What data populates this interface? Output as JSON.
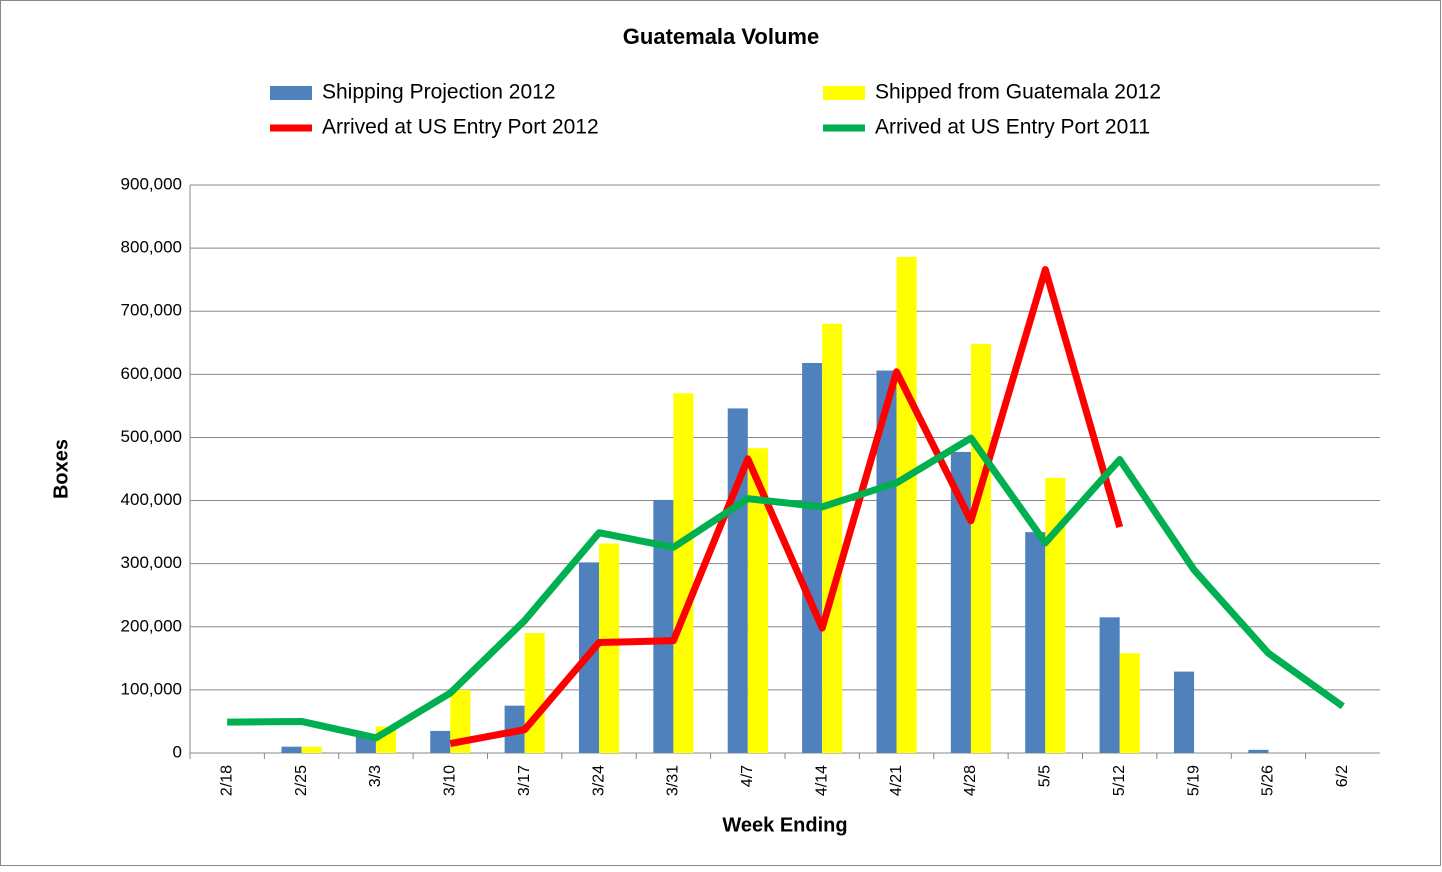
{
  "chart_data": {
    "type": "bar_line",
    "title": "Guatemala Volume",
    "x_label": "Week Ending",
    "y_label": "Boxes",
    "categories": [
      "2/18",
      "2/25",
      "3/3",
      "3/10",
      "3/17",
      "3/24",
      "3/31",
      "4/7",
      "4/14",
      "4/21",
      "4/28",
      "5/5",
      "5/12",
      "5/19",
      "5/26",
      "6/2"
    ],
    "series": [
      {
        "name": "Shipping Projection 2012",
        "type": "bar",
        "color": "#4f81bd",
        "values": [
          null,
          10000,
          30000,
          35000,
          75000,
          302000,
          401000,
          546000,
          618000,
          606000,
          477000,
          350000,
          215000,
          129000,
          5000,
          null
        ]
      },
      {
        "name": "Shipped from Guatemala 2012",
        "type": "bar",
        "color": "#ffff00",
        "values": [
          null,
          10000,
          42000,
          100000,
          190000,
          332000,
          570000,
          483000,
          680000,
          786000,
          648000,
          436000,
          158000,
          null,
          null,
          null
        ]
      },
      {
        "name": "Arrived at US Entry Port 2012",
        "type": "line",
        "color": "#ff0000",
        "values": [
          null,
          null,
          null,
          15000,
          37000,
          175000,
          178000,
          466000,
          198000,
          604000,
          368000,
          766000,
          358000,
          null,
          null,
          null
        ]
      },
      {
        "name": "Arrived at US Entry Port 2011",
        "type": "line",
        "color": "#00b050",
        "values": [
          49000,
          50000,
          24000,
          95000,
          210000,
          349000,
          326000,
          403000,
          390000,
          428000,
          499000,
          333000,
          465000,
          290000,
          158000,
          74000
        ]
      }
    ],
    "ylim": [
      0,
      900000
    ],
    "yticks": [
      0,
      {
        "value": 100000,
        "label": "100,000"
      },
      {
        "value": 200000,
        "label": "200,000"
      },
      {
        "value": 300000,
        "label": "300,000"
      },
      {
        "value": 400000,
        "label": "400,000"
      },
      {
        "value": 500000,
        "label": "500,000"
      },
      {
        "value": 600000,
        "label": "600,000"
      },
      {
        "value": 700000,
        "label": "700,000"
      },
      {
        "value": 800000,
        "label": "800,000"
      },
      {
        "value": 900000,
        "label": "900,000"
      }
    ],
    "grid": true,
    "legend": "top"
  }
}
